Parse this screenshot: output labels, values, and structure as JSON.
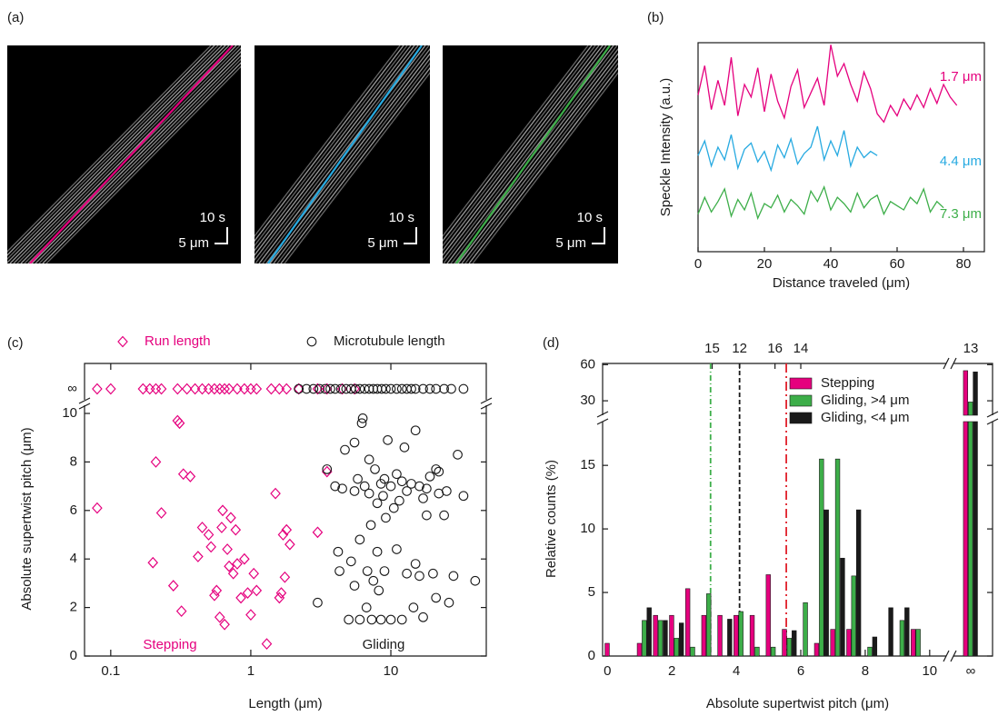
{
  "chart_data": [
    {
      "type": "image",
      "label": "(a)",
      "scale_time": "10 s",
      "scale_length": "5 μm",
      "line_colors": [
        "#e5007e",
        "#27aae1",
        "#3dae49"
      ]
    },
    {
      "type": "line",
      "label": "(b)",
      "xlabel": "Distance traveled (μm)",
      "ylabel": "Speckle Intensity (a.u.)",
      "xlim": [
        0,
        86.3
      ],
      "xticks": [
        0,
        20,
        40,
        60,
        80
      ],
      "ylim": [
        0,
        10
      ],
      "series": [
        {
          "name": "1.7 μm",
          "color": "#e5007e",
          "x": [
            0,
            2,
            4,
            6,
            8,
            10,
            12,
            14,
            16,
            18,
            20,
            22,
            24,
            26,
            28,
            30,
            32,
            34,
            36,
            38,
            40,
            42,
            44,
            46,
            48,
            50,
            52,
            54,
            56,
            58,
            60,
            62,
            64,
            66,
            68,
            70,
            72,
            74,
            76,
            78
          ],
          "values": [
            7.5,
            8.9,
            6.8,
            8.2,
            7.0,
            9.3,
            6.5,
            8.0,
            7.4,
            8.8,
            6.7,
            8.5,
            7.2,
            6.4,
            7.9,
            8.7,
            6.9,
            7.6,
            8.3,
            7.0,
            9.9,
            8.4,
            9.0,
            8.0,
            7.2,
            8.6,
            7.8,
            6.6,
            6.2,
            7.0,
            6.5,
            7.3,
            6.8,
            7.5,
            6.9,
            7.8,
            7.1,
            8.0,
            7.4,
            7.0
          ]
        },
        {
          "name": "4.4 μm",
          "color": "#27aae1",
          "x": [
            0,
            2,
            4,
            6,
            8,
            10,
            12,
            14,
            16,
            18,
            20,
            22,
            24,
            26,
            28,
            30,
            32,
            34,
            36,
            38,
            40,
            42,
            44,
            46,
            48,
            50,
            52,
            54
          ],
          "values": [
            4.6,
            5.3,
            4.1,
            5.0,
            4.4,
            5.6,
            4.0,
            4.9,
            5.2,
            4.3,
            4.8,
            3.9,
            5.1,
            4.5,
            5.4,
            4.2,
            4.7,
            5.0,
            6.0,
            4.4,
            5.3,
            4.6,
            5.8,
            4.1,
            5.0,
            4.5,
            4.8,
            4.6
          ]
        },
        {
          "name": "7.3 μm",
          "color": "#3dae49",
          "x": [
            0,
            2,
            4,
            6,
            8,
            10,
            12,
            14,
            16,
            18,
            20,
            22,
            24,
            26,
            28,
            30,
            32,
            34,
            36,
            38,
            40,
            42,
            44,
            46,
            48,
            50,
            52,
            54,
            56,
            58,
            60,
            62,
            64,
            66,
            68,
            70,
            72,
            74
          ],
          "values": [
            1.8,
            2.6,
            1.9,
            2.4,
            3.0,
            1.7,
            2.5,
            2.0,
            2.8,
            1.6,
            2.3,
            2.1,
            2.7,
            1.9,
            2.5,
            2.2,
            1.8,
            2.9,
            2.4,
            3.1,
            2.0,
            2.6,
            2.3,
            1.9,
            2.8,
            2.1,
            2.5,
            2.7,
            1.8,
            2.4,
            2.2,
            2.0,
            2.6,
            2.3,
            3.0,
            1.9,
            2.4,
            2.1
          ]
        }
      ]
    },
    {
      "type": "scatter",
      "label": "(c)",
      "xlabel": "Length (μm)",
      "ylabel": "Absolute supertwist pitch (μm)",
      "log_x": true,
      "xlim": [
        0.065,
        48
      ],
      "xticks": [
        0.1,
        1,
        10
      ],
      "ylim": [
        0,
        10.3
      ],
      "yticks": [
        0,
        2,
        4,
        6,
        8,
        10
      ],
      "inf_label": "∞",
      "annotations": [
        {
          "text": "Stepping",
          "color": "#e5007e"
        },
        {
          "text": "Gliding",
          "color": "#1a1a1a"
        }
      ],
      "series": [
        {
          "name": "Run length",
          "color": "#e5007e",
          "marker": "diamond",
          "x": [
            0.08,
            0.2,
            0.21,
            0.23,
            0.28,
            0.3,
            0.31,
            0.32,
            0.33,
            0.37,
            0.42,
            0.45,
            0.5,
            0.52,
            0.55,
            0.57,
            0.6,
            0.62,
            0.63,
            0.65,
            0.68,
            0.7,
            0.72,
            0.75,
            0.78,
            0.8,
            0.85,
            0.9,
            0.95,
            1.0,
            1.05,
            1.1,
            1.3,
            1.5,
            1.6,
            1.65,
            1.7,
            1.75,
            1.8,
            1.9,
            3,
            3.5
          ],
          "y": [
            6.1,
            3.85,
            8,
            5.9,
            2.9,
            9.7,
            9.6,
            1.85,
            7.5,
            7.4,
            4.1,
            5.3,
            5,
            4.5,
            2.5,
            2.7,
            1.6,
            5.3,
            6,
            1.3,
            4.4,
            3.7,
            5.7,
            3.4,
            5.2,
            3.8,
            2.4,
            4,
            2.6,
            1.7,
            3.4,
            2.7,
            0.5,
            6.7,
            2.4,
            2.6,
            5,
            3.25,
            5.2,
            4.6,
            5.1,
            7.6
          ],
          "x_inf": [
            0.08,
            0.1,
            0.17,
            0.19,
            0.21,
            0.23,
            0.3,
            0.35,
            0.4,
            0.45,
            0.5,
            0.55,
            0.6,
            0.65,
            0.7,
            0.8,
            0.9,
            1.0,
            1.1,
            1.4,
            1.6,
            1.8,
            2.2,
            3,
            3.5,
            4.5,
            5.5
          ]
        },
        {
          "name": "Microtubule length",
          "color": "#1a1a1a",
          "marker": "circle",
          "x": [
            3,
            3.5,
            4,
            4.2,
            4.5,
            4.7,
            5,
            5.2,
            5.5,
            5.5,
            5.8,
            6,
            6,
            6.2,
            6.5,
            6.7,
            6.8,
            7,
            7,
            7.3,
            7.5,
            7.7,
            8,
            8,
            8.2,
            8.5,
            8.8,
            9,
            9.2,
            9.5,
            10,
            10,
            10.5,
            11,
            11,
            11.5,
            12,
            12,
            12.5,
            13,
            13,
            14,
            14.5,
            15,
            15,
            16,
            16,
            17,
            17,
            18,
            18,
            19,
            20,
            21,
            21,
            22,
            22,
            24,
            25,
            26,
            28,
            30,
            33,
            40,
            5.5,
            6.3,
            9,
            7.2,
            4.3,
            8.5
          ],
          "y": [
            2.2,
            7.7,
            7.0,
            4.3,
            6.9,
            8.5,
            1.5,
            3.9,
            6.8,
            2.9,
            7.3,
            1.5,
            4.8,
            9.6,
            7.0,
            2.0,
            3.5,
            8.1,
            6.7,
            1.5,
            3.1,
            7.7,
            6.3,
            4.3,
            2.7,
            7.1,
            6.6,
            3.5,
            5.7,
            8.9,
            7.0,
            1.5,
            6.1,
            7.5,
            4.4,
            6.4,
            7.2,
            1.5,
            8.6,
            6.8,
            3.4,
            7.1,
            2.0,
            3.8,
            9.3,
            7.0,
            3.3,
            6.5,
            1.6,
            6.9,
            5.8,
            7.4,
            3.4,
            7.7,
            2.4,
            7.6,
            6.7,
            5.8,
            6.8,
            2.2,
            3.3,
            8.3,
            6.6,
            3.1,
            8.8,
            9.8,
            7.3,
            5.4,
            3.5,
            1.5
          ],
          "x_inf": [
            2.2,
            2.5,
            2.8,
            3.1,
            3.4,
            3.7,
            4.0,
            4.4,
            4.8,
            5.2,
            5.6,
            6,
            6.5,
            7,
            7.5,
            8,
            8.6,
            9.2,
            10,
            11,
            12,
            13,
            14,
            15,
            17,
            19,
            21,
            24,
            27,
            33
          ]
        }
      ]
    },
    {
      "type": "bar",
      "label": "(d)",
      "xlabel": "Absolute supertwist pitch (μm)",
      "ylabel": "Relative counts (%)",
      "x": [
        0,
        0.5,
        1,
        1.5,
        2,
        2.5,
        3,
        3.5,
        4,
        4.5,
        5,
        5.5,
        6,
        6.5,
        7,
        7.5,
        8,
        8.5,
        9,
        9.5
      ],
      "xlim": [
        -0.15,
        10.4
      ],
      "xticks": [
        0,
        2,
        4,
        6,
        8,
        10
      ],
      "inf_label": "∞",
      "ylim": [
        0,
        18.3
      ],
      "yticks": [
        0,
        5,
        10,
        15
      ],
      "ylim_upper": [
        19.5,
        61
      ],
      "yticks_upper": [
        30,
        60
      ],
      "top_ticks": [
        {
          "value": 3.25,
          "label": "15"
        },
        {
          "value": 4.1,
          "label": "12"
        },
        {
          "value": 5.2,
          "label": "16"
        },
        {
          "value": 6.0,
          "label": "14"
        }
      ],
      "top_tick_inf": "13",
      "reference_lines": [
        {
          "x": 3.2,
          "color": "#3dae49",
          "dash": "6 3 1 3"
        },
        {
          "x": 4.1,
          "color": "#1a1a1a",
          "dash": "5 3"
        },
        {
          "x": 5.55,
          "color": "#e0202a",
          "dash": "10 4 2 4"
        }
      ],
      "series": [
        {
          "name": "Stepping",
          "color": "#e5007e",
          "values": [
            1,
            0,
            1,
            3.2,
            3.2,
            5.3,
            3.2,
            3.2,
            3.2,
            3.2,
            6.4,
            2.1,
            0,
            1,
            2.1,
            2.1,
            0,
            0,
            0,
            2.1
          ],
          "inf_value": 55
        },
        {
          "name": "Gliding, >4 μm",
          "color": "#3dae49",
          "values": [
            0,
            0,
            2.8,
            2.8,
            1.4,
            0.7,
            4.9,
            0,
            3.5,
            0.7,
            0.7,
            1.4,
            4.2,
            15.5,
            15.5,
            6.3,
            0.7,
            0,
            2.8,
            2.1
          ],
          "inf_value": 29
        },
        {
          "name": "Gliding, <4 μm",
          "color": "#1a1a1a",
          "values": [
            0,
            0,
            3.8,
            2.8,
            2.6,
            0,
            0,
            2.9,
            0,
            0,
            0,
            2.0,
            0,
            11.5,
            7.7,
            11.5,
            1.5,
            3.8,
            3.8,
            0
          ],
          "inf_value": 54
        }
      ]
    }
  ]
}
